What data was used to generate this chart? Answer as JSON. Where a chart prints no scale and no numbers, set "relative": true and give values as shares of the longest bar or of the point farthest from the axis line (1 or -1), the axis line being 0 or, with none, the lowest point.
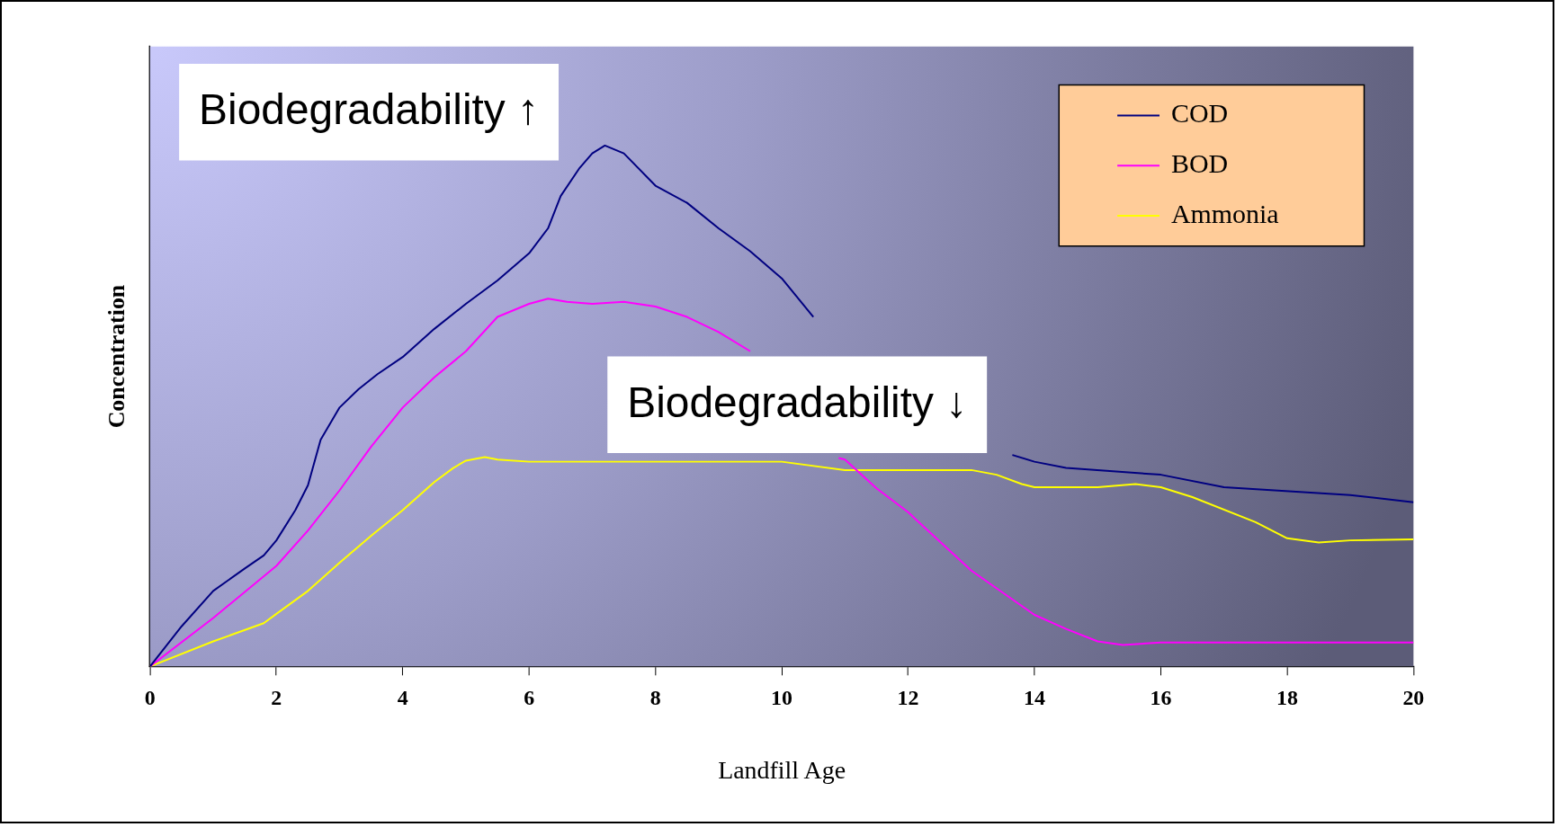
{
  "chart_data": {
    "type": "line",
    "relative": true,
    "xlabel": "Landfill Age",
    "ylabel": "Concentration",
    "xlim": [
      0,
      20
    ],
    "xticks": [
      0,
      2,
      4,
      6,
      8,
      10,
      12,
      14,
      16,
      18,
      20
    ],
    "grid": false,
    "legend": "top right",
    "marker": "none",
    "line_style": "solid",
    "annotations": [
      "Biodegradability ↑",
      "Biodegradability ↓"
    ],
    "series": [
      {
        "name": "COD",
        "color": "#000080",
        "x": [
          0,
          0.5,
          1,
          1.5,
          1.8,
          2,
          2.3,
          2.5,
          2.7,
          3,
          3.3,
          3.6,
          4,
          4.5,
          5,
          5.5,
          6,
          6.3,
          6.5,
          6.8,
          7,
          7.2,
          7.5,
          8,
          8.5,
          9,
          9.5,
          10,
          10.5,
          11,
          12,
          13,
          13.65,
          14,
          14.5,
          16,
          17,
          19,
          20
        ],
        "values": [
          0,
          0.077,
          0.145,
          0.188,
          0.213,
          0.242,
          0.3,
          0.348,
          0.435,
          0.497,
          0.532,
          0.561,
          0.594,
          0.648,
          0.696,
          0.741,
          0.793,
          0.841,
          0.903,
          0.957,
          0.985,
          1,
          0.985,
          0.923,
          0.89,
          0.841,
          0.797,
          0.745,
          0.671,
          null,
          null,
          null,
          0.406,
          0.393,
          0.381,
          0.368,
          0.344,
          0.329,
          0.315
        ]
      },
      {
        "name": "BOD",
        "color": "#ff00ff",
        "x": [
          0,
          1,
          2,
          2.5,
          3,
          3.5,
          4,
          4.5,
          5,
          5.5,
          6,
          6.3,
          6.6,
          7,
          7.5,
          8,
          8.5,
          9,
          9.5,
          10,
          10.9,
          11,
          11.5,
          12,
          13,
          14,
          14.5,
          15,
          15.4,
          16,
          20
        ],
        "values": [
          0,
          0.093,
          0.193,
          0.261,
          0.338,
          0.422,
          0.497,
          0.555,
          0.605,
          0.671,
          0.696,
          0.706,
          0.7,
          0.696,
          0.7,
          0.691,
          0.671,
          0.642,
          0.605,
          null,
          0.4,
          0.397,
          0.342,
          0.296,
          0.184,
          0.099,
          0.072,
          0.048,
          0.041,
          0.046,
          0.046
        ]
      },
      {
        "name": "Ammonia",
        "color": "#ffff00",
        "x": [
          0,
          1,
          1.8,
          2,
          2.5,
          3,
          3.5,
          4,
          4.5,
          4.8,
          5,
          5.3,
          5.5,
          6,
          10,
          11,
          13,
          13.4,
          13.8,
          14,
          15,
          15.6,
          16,
          16.5,
          17.5,
          18,
          18.5,
          19,
          20
        ],
        "values": [
          0,
          0.048,
          0.083,
          0.101,
          0.145,
          0.199,
          0.251,
          0.3,
          0.354,
          0.381,
          0.395,
          0.402,
          0.397,
          0.393,
          0.393,
          0.377,
          0.377,
          0.368,
          0.35,
          0.344,
          0.344,
          0.35,
          0.344,
          0.325,
          0.277,
          0.246,
          0.238,
          0.242,
          0.244
        ]
      }
    ]
  }
}
